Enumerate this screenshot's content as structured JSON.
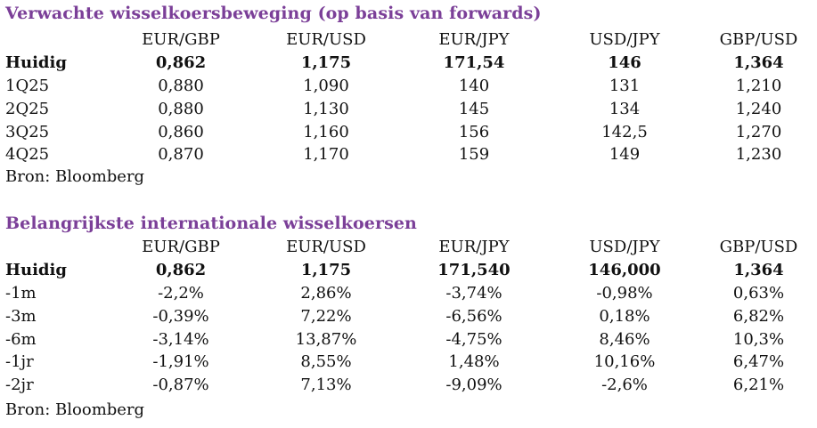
{
  "section1": {
    "title": "Verwachte wisselkoersbeweging (op basis van forwards)",
    "columns": [
      "EUR/GBP",
      "EUR/USD",
      "EUR/JPY",
      "USD/JPY",
      "GBP/USD"
    ],
    "rows": [
      {
        "label": "Huidig",
        "values": [
          "0,862",
          "1,175",
          "171,54",
          "146",
          "1,364"
        ]
      },
      {
        "label": "1Q25",
        "values": [
          "0,880",
          "1,090",
          "140",
          "131",
          "1,210"
        ]
      },
      {
        "label": "2Q25",
        "values": [
          "0,880",
          "1,130",
          "145",
          "134",
          "1,240"
        ]
      },
      {
        "label": "3Q25",
        "values": [
          "0,860",
          "1,160",
          "156",
          "142,5",
          "1,270"
        ]
      },
      {
        "label": "4Q25",
        "values": [
          "0,870",
          "1,170",
          "159",
          "149",
          "1,230"
        ]
      }
    ],
    "source": "Bron: Bloomberg"
  },
  "section2": {
    "title": "Belangrijkste internationale wisselkoersen",
    "columns": [
      "EUR/GBP",
      "EUR/USD",
      "EUR/JPY",
      "USD/JPY",
      "GBP/USD"
    ],
    "rows": [
      {
        "label": "Huidig",
        "values": [
          "0,862",
          "1,175",
          "171,540",
          "146,000",
          "1,364"
        ]
      },
      {
        "label": "-1m",
        "values": [
          "-2,2%",
          "2,86%",
          "-3,74%",
          "-0,98%",
          "0,63%"
        ]
      },
      {
        "label": "-3m",
        "values": [
          "-0,39%",
          "7,22%",
          "-6,56%",
          "0,18%",
          "6,82%"
        ]
      },
      {
        "label": "-6m",
        "values": [
          "-3,14%",
          "13,87%",
          "-4,75%",
          "8,46%",
          "10,3%"
        ]
      },
      {
        "label": "-1jr",
        "values": [
          "-1,91%",
          "8,55%",
          "1,48%",
          "10,16%",
          "6,47%"
        ]
      },
      {
        "label": "-2jr",
        "values": [
          "-0,87%",
          "7,13%",
          "-9,09%",
          "-2,6%",
          "6,21%"
        ]
      }
    ],
    "source": "Bron: Bloomberg"
  },
  "colors": {
    "title": "#7B3F98",
    "text": "#111111"
  }
}
